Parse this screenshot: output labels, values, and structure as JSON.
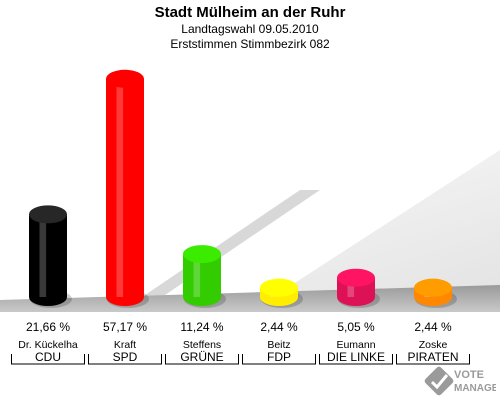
{
  "title": "Stadt Mülheim an der Ruhr",
  "subtitle": "Landtagswahl 09.05.2010",
  "subtitle2": "Erststimmen Stimmbezirk 082",
  "logo_text": "VOTE MANAGER",
  "chart_data": {
    "type": "bar",
    "style": "3d-cylinder",
    "ylim": [
      0,
      60
    ],
    "categories": [
      {
        "candidate": "Dr. Kückelha",
        "party": "CDU",
        "value": 21.66,
        "label": "21,66 %",
        "color": "#000000"
      },
      {
        "candidate": "Kraft",
        "party": "SPD",
        "value": 57.17,
        "label": "57,17 %",
        "color": "#ff0000"
      },
      {
        "candidate": "Steffens",
        "party": "GRÜNE",
        "value": 11.24,
        "label": "11,24 %",
        "color": "#33cc00"
      },
      {
        "candidate": "Beitz",
        "party": "FDP",
        "value": 2.44,
        "label": "2,44 %",
        "color": "#ffee00"
      },
      {
        "candidate": "Eumann",
        "party": "DIE LINKE",
        "value": 5.05,
        "label": "5,05 %",
        "color": "#dd1155"
      },
      {
        "candidate": "Zoske",
        "party": "PIRATEN",
        "value": 2.44,
        "label": "2,44 %",
        "color": "#ff8800"
      }
    ]
  }
}
